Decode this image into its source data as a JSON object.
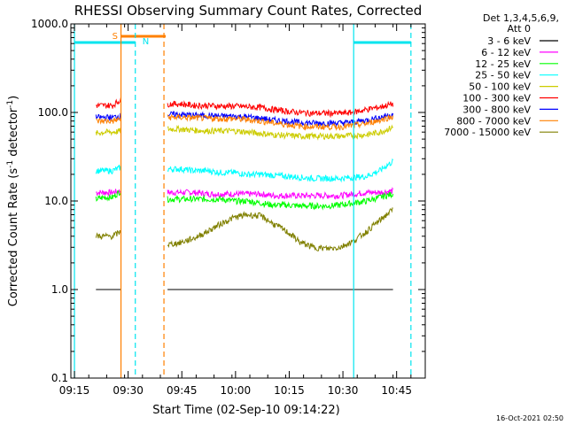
{
  "chart_data": {
    "type": "line",
    "title": "RHESSI Observing Summary Count Rates, Corrected",
    "xlabel": "Start Time (02-Sep-10 09:14:22)",
    "ylabel_parts": [
      "Corrected Count Rate (s",
      "-1",
      " detector",
      "-1",
      ")"
    ],
    "yscale": "log",
    "ylim": [
      0.1,
      1000.0
    ],
    "xlim_minutes": [
      "09:14",
      "10:53"
    ],
    "x_ticks": [
      "09:15",
      "09:30",
      "09:45",
      "10:00",
      "10:15",
      "10:30",
      "10:45"
    ],
    "y_ticks": [
      "0.1",
      "1.0",
      "10.0",
      "100.0",
      "1000.0"
    ],
    "legend_header": [
      "Det 1,3,4,5,6,9,",
      "Att 0"
    ],
    "legend_position": "right",
    "timestamp": "16-Oct-2021 02:50",
    "markers": {
      "saa": {
        "label": "S",
        "start": "09:28",
        "end": "09:40",
        "color": "#ff8000"
      },
      "night": {
        "label": "N",
        "start": "09:32",
        "end": "09:40",
        "color": "#00e5ee"
      },
      "night_bars": [
        [
          "09:15",
          "09:32"
        ],
        [
          "10:33",
          "10:49"
        ]
      ],
      "vlines_solid": [
        {
          "t": "09:15",
          "color": "#00e5ee"
        },
        {
          "t": "09:28",
          "color": "#ff8000"
        },
        {
          "t": "10:33",
          "color": "#00e5ee"
        }
      ],
      "vlines_dashed": [
        {
          "t": "09:32",
          "color": "#00e5ee"
        },
        {
          "t": "09:40",
          "color": "#ff8000"
        },
        {
          "t": "10:49",
          "color": "#00e5ee"
        }
      ]
    },
    "segments": [
      [
        "09:21",
        "09:28"
      ],
      [
        "09:41",
        "10:44"
      ]
    ],
    "series": [
      {
        "name": "3 - 6 keV",
        "color": "#000000",
        "values": [
          [
            1.0,
            1.0,
            1.0,
            1.0
          ],
          [
            1.0,
            1.0,
            1.0,
            1.0,
            1.0,
            1.0,
            1.0,
            1.0,
            1.0,
            1.0,
            1.0,
            1.0,
            1.0,
            1.0,
            1.0,
            1.0,
            1.0,
            1.0
          ]
        ]
      },
      {
        "name": "6 - 12 keV",
        "color": "#ff00ff",
        "values": [
          [
            12.5,
            12.5,
            12.5,
            13.0
          ],
          [
            12.5,
            12.5,
            12.5,
            12.0,
            12.0,
            12.0,
            12.0,
            12.0,
            11.5,
            11.5,
            11.5,
            11.5,
            11.5,
            11.5,
            12.0,
            12.5,
            12.5,
            13.0
          ]
        ]
      },
      {
        "name": "12 - 25 keV",
        "color": "#00ff00",
        "values": [
          [
            10.5,
            11.0,
            11.0,
            13.0
          ],
          [
            10.5,
            10.5,
            10.5,
            10.5,
            10.5,
            10.0,
            10.0,
            9.5,
            9.0,
            9.0,
            8.8,
            8.8,
            8.8,
            9.0,
            9.5,
            10.0,
            11.0,
            12.0
          ]
        ]
      },
      {
        "name": "25 - 50 keV",
        "color": "#00ffff",
        "values": [
          [
            22.0,
            22.0,
            22.0,
            24.0
          ],
          [
            23.0,
            23.0,
            22.0,
            22.0,
            21.0,
            21.0,
            20.0,
            20.0,
            19.5,
            19.0,
            18.5,
            18.0,
            18.0,
            18.0,
            18.5,
            19.0,
            22.0,
            28.0
          ]
        ]
      },
      {
        "name": "50 - 100 keV",
        "color": "#cccc00",
        "values": [
          [
            58.0,
            60.0,
            60.0,
            62.0
          ],
          [
            65.0,
            65.0,
            63.0,
            62.0,
            62.0,
            62.0,
            60.0,
            58.0,
            56.0,
            55.0,
            54.0,
            54.0,
            54.0,
            54.0,
            55.0,
            56.0,
            60.0,
            68.0
          ]
        ]
      },
      {
        "name": "100 - 300 keV",
        "color": "#ff0000",
        "values": [
          [
            120.0,
            120.0,
            120.0,
            140.0
          ],
          [
            125.0,
            125.0,
            120.0,
            120.0,
            118.0,
            118.0,
            116.0,
            114.0,
            108.0,
            103.0,
            100.0,
            98.0,
            98.0,
            98.0,
            100.0,
            108.0,
            115.0,
            125.0
          ]
        ]
      },
      {
        "name": "300 - 800 keV",
        "color": "#0000ff",
        "values": [
          [
            88.0,
            88.0,
            88.0,
            92.0
          ],
          [
            95.0,
            95.0,
            93.0,
            92.0,
            91.0,
            91.0,
            89.0,
            86.0,
            82.0,
            80.0,
            77.0,
            76.0,
            76.0,
            76.0,
            78.0,
            82.0,
            88.0,
            96.0
          ]
        ]
      },
      {
        "name": "800 - 7000 keV",
        "color": "#ff8000",
        "values": [
          [
            80.0,
            80.0,
            80.0,
            85.0
          ],
          [
            88.0,
            88.0,
            87.0,
            86.0,
            85.0,
            85.0,
            83.0,
            80.0,
            76.0,
            73.0,
            70.0,
            69.0,
            69.0,
            69.0,
            71.0,
            75.0,
            82.0,
            90.0
          ]
        ]
      },
      {
        "name": "7000 - 15000 keV",
        "color": "#808000",
        "values": [
          [
            4.0,
            4.0,
            4.0,
            4.5
          ],
          [
            3.2,
            3.4,
            3.8,
            4.5,
            5.5,
            6.5,
            7.0,
            6.8,
            5.5,
            4.5,
            3.4,
            3.0,
            2.9,
            3.0,
            3.5,
            4.5,
            6.0,
            8.0
          ]
        ]
      }
    ]
  }
}
